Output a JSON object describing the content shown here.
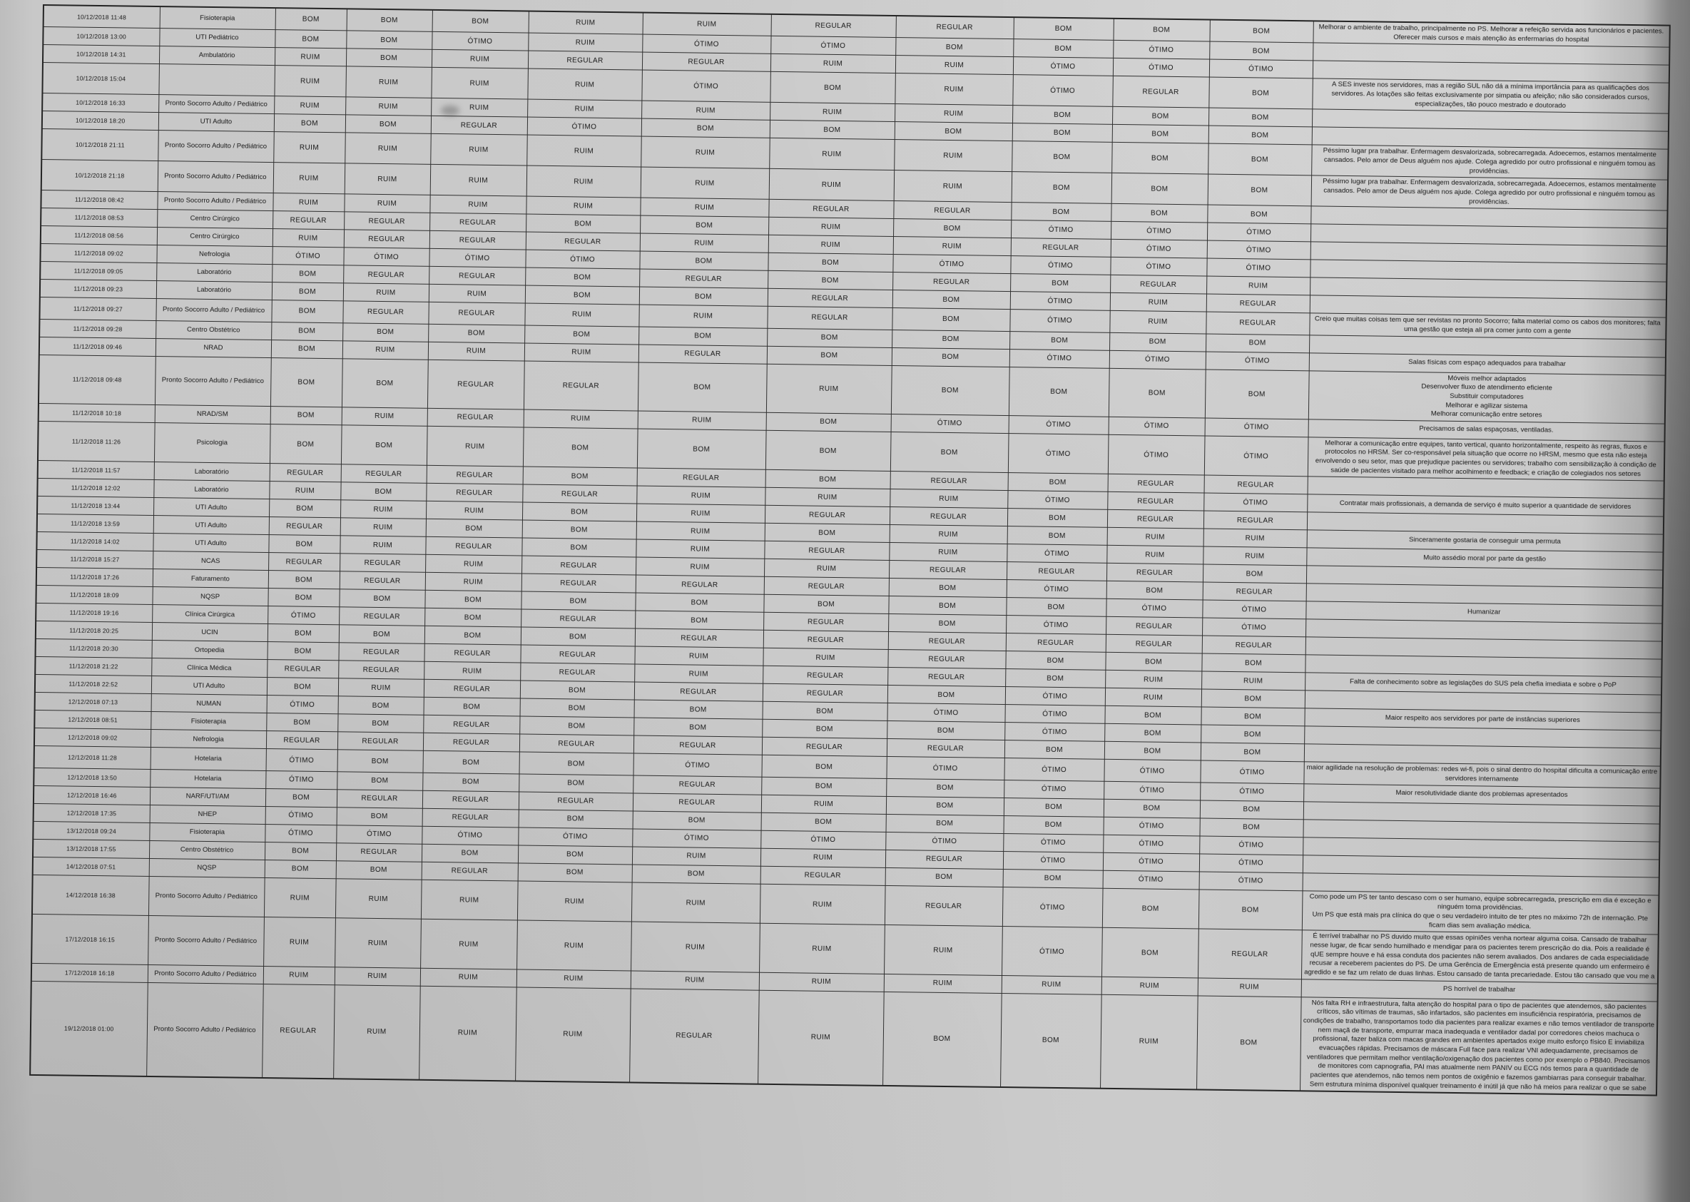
{
  "document": {
    "kind": "scanned-survey-table",
    "rating_values_used": [
      "BOM",
      "RUIM",
      "REGULAR",
      "ÓTIMO"
    ],
    "paper_color": "#cbcbcb",
    "ink_color": "#1a1a1a"
  },
  "table": {
    "rows": [
      {
        "datetime": "10/12/2018 11:48",
        "sector": "Fisioterapia",
        "ratings": [
          "BOM",
          "BOM",
          "BOM",
          "RUIM",
          "RUIM",
          "REGULAR",
          "REGULAR",
          "BOM",
          "BOM",
          "BOM"
        ],
        "comment": "Melhorar o ambiente de trabalho, principalmente no PS. Melhorar a refeição servida aos funcionários e pacientes. Oferecer mais cursos e mais atenção às enfermarias do hospital"
      },
      {
        "datetime": "10/12/2018 13:00",
        "sector": "UTI Pediátrico",
        "ratings": [
          "BOM",
          "BOM",
          "ÓTIMO",
          "RUIM",
          "ÓTIMO",
          "ÓTIMO",
          "BOM",
          "BOM",
          "ÓTIMO",
          "BOM"
        ],
        "comment": ""
      },
      {
        "datetime": "10/12/2018 14:31",
        "sector": "Ambulatório",
        "ratings": [
          "RUIM",
          "BOM",
          "RUIM",
          "REGULAR",
          "REGULAR",
          "RUIM",
          "RUIM",
          "ÓTIMO",
          "ÓTIMO",
          "ÓTIMO"
        ],
        "comment": ""
      },
      {
        "datetime": "10/12/2018 15:04",
        "sector": "",
        "ratings": [
          "RUIM",
          "RUIM",
          "RUIM",
          "RUIM",
          "ÓTIMO",
          "BOM",
          "RUIM",
          "ÓTIMO",
          "REGULAR",
          "BOM"
        ],
        "comment": "A SES investe nos servidores, mas a região SUL não dá a mínima importância para as qualificações dos servidores. As lotações são feitas exclusivamente por simpatia ou afeição; não são considerados cursos, especializações, tão pouco mestrado e doutorado"
      },
      {
        "datetime": "10/12/2018 16:33",
        "sector": "Pronto Socorro Adulto / Pediátrico",
        "ratings": [
          "RUIM",
          "RUIM",
          "RUIM",
          "RUIM",
          "RUIM",
          "RUIM",
          "RUIM",
          "BOM",
          "BOM",
          "BOM"
        ],
        "comment": ""
      },
      {
        "datetime": "10/12/2018 18:20",
        "sector": "UTI Adulto",
        "ratings": [
          "BOM",
          "BOM",
          "REGULAR",
          "ÓTIMO",
          "BOM",
          "BOM",
          "BOM",
          "BOM",
          "BOM",
          "BOM"
        ],
        "comment": ""
      },
      {
        "datetime": "10/12/2018 21:11",
        "sector": "Pronto Socorro Adulto / Pediátrico",
        "ratings": [
          "RUIM",
          "RUIM",
          "RUIM",
          "RUIM",
          "RUIM",
          "RUIM",
          "RUIM",
          "BOM",
          "BOM",
          "BOM"
        ],
        "comment": "Péssimo lugar pra trabalhar. Enfermagem desvalorizada, sobrecarregada. Adoecemos, estamos mentalmente cansados. Pelo amor de Deus alguém nos ajude. Colega agredido por outro profissional e ninguém tomou as providências."
      },
      {
        "datetime": "10/12/2018 21:18",
        "sector": "Pronto Socorro Adulto / Pediátrico",
        "ratings": [
          "RUIM",
          "RUIM",
          "RUIM",
          "RUIM",
          "RUIM",
          "RUIM",
          "RUIM",
          "BOM",
          "BOM",
          "BOM"
        ],
        "comment": "Péssimo lugar pra trabalhar. Enfermagem desvalorizada, sobrecarregada. Adoecemos, estamos mentalmente cansados. Pelo amor de Deus alguém nos ajude. Colega agredido por outro profissional e ninguém tomou as providências."
      },
      {
        "datetime": "11/12/2018 08:42",
        "sector": "Pronto Socorro Adulto / Pediátrico",
        "ratings": [
          "RUIM",
          "RUIM",
          "RUIM",
          "RUIM",
          "RUIM",
          "REGULAR",
          "REGULAR",
          "BOM",
          "BOM",
          "BOM"
        ],
        "comment": ""
      },
      {
        "datetime": "11/12/2018 08:53",
        "sector": "Centro Cirúrgico",
        "ratings": [
          "REGULAR",
          "REGULAR",
          "REGULAR",
          "BOM",
          "BOM",
          "RUIM",
          "BOM",
          "ÓTIMO",
          "ÓTIMO",
          "ÓTIMO"
        ],
        "comment": ""
      },
      {
        "datetime": "11/12/2018 08:56",
        "sector": "Centro Cirúrgico",
        "ratings": [
          "RUIM",
          "REGULAR",
          "REGULAR",
          "REGULAR",
          "RUIM",
          "RUIM",
          "RUIM",
          "REGULAR",
          "ÓTIMO",
          "ÓTIMO"
        ],
        "comment": ""
      },
      {
        "datetime": "11/12/2018 09:02",
        "sector": "Nefrologia",
        "ratings": [
          "ÓTIMO",
          "ÓTIMO",
          "ÓTIMO",
          "ÓTIMO",
          "BOM",
          "BOM",
          "ÓTIMO",
          "ÓTIMO",
          "ÓTIMO",
          "ÓTIMO"
        ],
        "comment": ""
      },
      {
        "datetime": "11/12/2018 09:05",
        "sector": "Laboratório",
        "ratings": [
          "BOM",
          "REGULAR",
          "REGULAR",
          "BOM",
          "REGULAR",
          "BOM",
          "REGULAR",
          "BOM",
          "REGULAR",
          "RUIM"
        ],
        "comment": ""
      },
      {
        "datetime": "11/12/2018 09:23",
        "sector": "Laboratório",
        "ratings": [
          "BOM",
          "RUIM",
          "RUIM",
          "BOM",
          "BOM",
          "REGULAR",
          "BOM",
          "ÓTIMO",
          "RUIM",
          "REGULAR"
        ],
        "comment": ""
      },
      {
        "datetime": "11/12/2018 09:27",
        "sector": "Pronto Socorro Adulto / Pediátrico",
        "ratings": [
          "BOM",
          "REGULAR",
          "REGULAR",
          "RUIM",
          "RUIM",
          "REGULAR",
          "BOM",
          "ÓTIMO",
          "RUIM",
          "REGULAR"
        ],
        "comment": "Creio que muitas coisas tem que ser revistas no pronto Socorro; falta material como os cabos dos monitores; falta uma gestão que esteja ali pra comer junto com a gente"
      },
      {
        "datetime": "11/12/2018 09:28",
        "sector": "Centro Obstétrico",
        "ratings": [
          "BOM",
          "BOM",
          "BOM",
          "BOM",
          "BOM",
          "BOM",
          "BOM",
          "BOM",
          "BOM",
          "BOM"
        ],
        "comment": ""
      },
      {
        "datetime": "11/12/2018 09:46",
        "sector": "NRAD",
        "ratings": [
          "BOM",
          "RUIM",
          "RUIM",
          "RUIM",
          "REGULAR",
          "BOM",
          "BOM",
          "ÓTIMO",
          "ÓTIMO",
          "ÓTIMO"
        ],
        "comment": "Salas físicas com espaço adequados para trabalhar"
      },
      {
        "datetime": "11/12/2018 09:48",
        "sector": "Pronto Socorro Adulto / Pediátrico",
        "ratings": [
          "BOM",
          "BOM",
          "REGULAR",
          "REGULAR",
          "BOM",
          "RUIM",
          "BOM",
          "BOM",
          "BOM",
          "BOM"
        ],
        "comment": "Móveis melhor adaptados\nDesenvolver fluxo de atendimento eficiente\nSubstituir computadores\nMelhorar e agilizar sistema\nMelhorar comunicação entre setores"
      },
      {
        "datetime": "11/12/2018 10:18",
        "sector": "NRAD/SM",
        "ratings": [
          "BOM",
          "RUIM",
          "REGULAR",
          "RUIM",
          "RUIM",
          "BOM",
          "ÓTIMO",
          "ÓTIMO",
          "ÓTIMO",
          "ÓTIMO"
        ],
        "comment": "Precisamos de salas espaçosas, ventiladas."
      },
      {
        "datetime": "11/12/2018 11:26",
        "sector": "Psicologia",
        "ratings": [
          "BOM",
          "BOM",
          "RUIM",
          "BOM",
          "BOM",
          "BOM",
          "BOM",
          "ÓTIMO",
          "ÓTIMO",
          "ÓTIMO"
        ],
        "comment": "Melhorar a comunicação entre equipes, tanto vertical, quanto horizontalmente, respeito às regras, fluxos e protocolos no HRSM. Ser co-responsável pela situação que ocorre no HRSM, mesmo que esta não esteja envolvendo o seu setor, mas que prejudique pacientes ou servidores; trabalho com sensibilização à condição de saúde de pacientes visitado para melhor acolhimento e feedback; e criação de colegiados nos setores"
      },
      {
        "datetime": "11/12/2018 11:57",
        "sector": "Laboratório",
        "ratings": [
          "REGULAR",
          "REGULAR",
          "REGULAR",
          "BOM",
          "REGULAR",
          "BOM",
          "REGULAR",
          "BOM",
          "REGULAR",
          "REGULAR"
        ],
        "comment": ""
      },
      {
        "datetime": "11/12/2018 12:02",
        "sector": "Laboratório",
        "ratings": [
          "RUIM",
          "BOM",
          "REGULAR",
          "REGULAR",
          "RUIM",
          "RUIM",
          "RUIM",
          "ÓTIMO",
          "REGULAR",
          "ÓTIMO"
        ],
        "comment": "Contratar mais profissionais, a demanda de serviço é muito superior a quantidade de servidores"
      },
      {
        "datetime": "11/12/2018 13:44",
        "sector": "UTI Adulto",
        "ratings": [
          "BOM",
          "RUIM",
          "RUIM",
          "BOM",
          "RUIM",
          "REGULAR",
          "REGULAR",
          "BOM",
          "REGULAR",
          "REGULAR"
        ],
        "comment": ""
      },
      {
        "datetime": "11/12/2018 13:59",
        "sector": "UTI Adulto",
        "ratings": [
          "REGULAR",
          "RUIM",
          "BOM",
          "BOM",
          "RUIM",
          "BOM",
          "RUIM",
          "BOM",
          "RUIM",
          "RUIM"
        ],
        "comment": "Sinceramente gostaria de conseguir uma permuta"
      },
      {
        "datetime": "11/12/2018 14:02",
        "sector": "UTI Adulto",
        "ratings": [
          "BOM",
          "RUIM",
          "REGULAR",
          "BOM",
          "RUIM",
          "REGULAR",
          "RUIM",
          "ÓTIMO",
          "RUIM",
          "RUIM"
        ],
        "comment": "Muito assédio moral por parte da gestão"
      },
      {
        "datetime": "11/12/2018 15:27",
        "sector": "NCAS",
        "ratings": [
          "REGULAR",
          "REGULAR",
          "RUIM",
          "REGULAR",
          "RUIM",
          "RUIM",
          "REGULAR",
          "REGULAR",
          "REGULAR",
          "BOM"
        ],
        "comment": ""
      },
      {
        "datetime": "11/12/2018 17:26",
        "sector": "Faturamento",
        "ratings": [
          "BOM",
          "REGULAR",
          "RUIM",
          "REGULAR",
          "REGULAR",
          "REGULAR",
          "BOM",
          "ÓTIMO",
          "BOM",
          "REGULAR"
        ],
        "comment": ""
      },
      {
        "datetime": "11/12/2018 18:09",
        "sector": "NQSP",
        "ratings": [
          "BOM",
          "BOM",
          "BOM",
          "BOM",
          "BOM",
          "BOM",
          "BOM",
          "BOM",
          "ÓTIMO",
          "ÓTIMO"
        ],
        "comment": "Humanizar"
      },
      {
        "datetime": "11/12/2018 19:16",
        "sector": "Clínica Cirúrgica",
        "ratings": [
          "ÓTIMO",
          "REGULAR",
          "BOM",
          "REGULAR",
          "BOM",
          "REGULAR",
          "BOM",
          "ÓTIMO",
          "REGULAR",
          "ÓTIMO"
        ],
        "comment": ""
      },
      {
        "datetime": "11/12/2018 20:25",
        "sector": "UCIN",
        "ratings": [
          "BOM",
          "BOM",
          "BOM",
          "BOM",
          "REGULAR",
          "REGULAR",
          "REGULAR",
          "REGULAR",
          "REGULAR",
          "REGULAR"
        ],
        "comment": ""
      },
      {
        "datetime": "11/12/2018 20:30",
        "sector": "Ortopedia",
        "ratings": [
          "BOM",
          "REGULAR",
          "REGULAR",
          "REGULAR",
          "RUIM",
          "RUIM",
          "REGULAR",
          "BOM",
          "BOM",
          "BOM"
        ],
        "comment": ""
      },
      {
        "datetime": "11/12/2018 21:22",
        "sector": "Clínica Médica",
        "ratings": [
          "REGULAR",
          "REGULAR",
          "RUIM",
          "REGULAR",
          "RUIM",
          "REGULAR",
          "REGULAR",
          "BOM",
          "RUIM",
          "RUIM"
        ],
        "comment": "Falta de conhecimento sobre as legislações do SUS pela chefia imediata e sobre o PoP"
      },
      {
        "datetime": "11/12/2018 22:52",
        "sector": "UTI Adulto",
        "ratings": [
          "BOM",
          "RUIM",
          "REGULAR",
          "BOM",
          "REGULAR",
          "REGULAR",
          "BOM",
          "ÓTIMO",
          "RUIM",
          "BOM"
        ],
        "comment": ""
      },
      {
        "datetime": "12/12/2018 07:13",
        "sector": "NUMAN",
        "ratings": [
          "ÓTIMO",
          "BOM",
          "BOM",
          "BOM",
          "BOM",
          "BOM",
          "ÓTIMO",
          "ÓTIMO",
          "BOM",
          "BOM"
        ],
        "comment": "Maior respeito aos servidores por parte de instâncias superiores"
      },
      {
        "datetime": "12/12/2018 08:51",
        "sector": "Fisioterapia",
        "ratings": [
          "BOM",
          "BOM",
          "REGULAR",
          "BOM",
          "BOM",
          "BOM",
          "BOM",
          "ÓTIMO",
          "BOM",
          "BOM"
        ],
        "comment": ""
      },
      {
        "datetime": "12/12/2018 09:02",
        "sector": "Nefrologia",
        "ratings": [
          "REGULAR",
          "REGULAR",
          "REGULAR",
          "REGULAR",
          "REGULAR",
          "REGULAR",
          "REGULAR",
          "BOM",
          "BOM",
          "BOM"
        ],
        "comment": ""
      },
      {
        "datetime": "12/12/2018 11:28",
        "sector": "Hotelaria",
        "ratings": [
          "ÓTIMO",
          "BOM",
          "BOM",
          "BOM",
          "ÓTIMO",
          "BOM",
          "ÓTIMO",
          "ÓTIMO",
          "ÓTIMO",
          "ÓTIMO"
        ],
        "comment": "maior agilidade na resolução de problemas: redes wi-fi, pois o sinal dentro do hospital dificulta a comunicação entre servidores internamente"
      },
      {
        "datetime": "12/12/2018 13:50",
        "sector": "Hotelaria",
        "ratings": [
          "ÓTIMO",
          "BOM",
          "BOM",
          "BOM",
          "REGULAR",
          "BOM",
          "BOM",
          "ÓTIMO",
          "ÓTIMO",
          "ÓTIMO"
        ],
        "comment": "Maior resolutividade diante dos problemas apresentados"
      },
      {
        "datetime": "12/12/2018 16:46",
        "sector": "NARF/UTI/AM",
        "ratings": [
          "BOM",
          "REGULAR",
          "REGULAR",
          "REGULAR",
          "REGULAR",
          "RUIM",
          "BOM",
          "BOM",
          "BOM",
          "BOM"
        ],
        "comment": ""
      },
      {
        "datetime": "12/12/2018 17:35",
        "sector": "NHEP",
        "ratings": [
          "ÓTIMO",
          "BOM",
          "REGULAR",
          "BOM",
          "BOM",
          "BOM",
          "BOM",
          "BOM",
          "ÓTIMO",
          "BOM"
        ],
        "comment": ""
      },
      {
        "datetime": "13/12/2018 09:24",
        "sector": "Fisioterapia",
        "ratings": [
          "ÓTIMO",
          "ÓTIMO",
          "ÓTIMO",
          "ÓTIMO",
          "ÓTIMO",
          "ÓTIMO",
          "ÓTIMO",
          "ÓTIMO",
          "ÓTIMO",
          "ÓTIMO"
        ],
        "comment": ""
      },
      {
        "datetime": "13/12/2018 17:55",
        "sector": "Centro Obstétrico",
        "ratings": [
          "BOM",
          "REGULAR",
          "BOM",
          "BOM",
          "RUIM",
          "RUIM",
          "REGULAR",
          "ÓTIMO",
          "ÓTIMO",
          "ÓTIMO"
        ],
        "comment": ""
      },
      {
        "datetime": "14/12/2018 07:51",
        "sector": "NQSP",
        "ratings": [
          "BOM",
          "BOM",
          "REGULAR",
          "BOM",
          "BOM",
          "REGULAR",
          "BOM",
          "BOM",
          "ÓTIMO",
          "ÓTIMO"
        ],
        "comment": ""
      },
      {
        "datetime": "14/12/2018 16:38",
        "sector": "Pronto Socorro Adulto / Pediátrico",
        "ratings": [
          "RUIM",
          "RUIM",
          "RUIM",
          "RUIM",
          "RUIM",
          "RUIM",
          "REGULAR",
          "ÓTIMO",
          "BOM",
          "BOM"
        ],
        "comment": "Como pode um PS ter tanto descaso com o ser humano, equipe sobrecarregada, prescrição em dia é exceção e ninguém toma providências.\nUm PS que está mais pra clínica do que o seu verdadeiro intuito de ter ptes no máximo 72h de internação. Pte ficam dias sem avaliação médica."
      },
      {
        "datetime": "17/12/2018 16:15",
        "sector": "Pronto Socorro Adulto / Pediátrico",
        "ratings": [
          "RUIM",
          "RUIM",
          "RUIM",
          "RUIM",
          "RUIM",
          "RUIM",
          "RUIM",
          "ÓTIMO",
          "BOM",
          "REGULAR"
        ],
        "comment": "É terrível trabalhar no PS duvido muito que essas opiniões venha nortear alguma coisa. Cansado de trabalhar nesse lugar, de ficar sendo humilhado e mendigar para os pacientes terem prescrição do dia. Pois a realidade é qUE sempre houve e há essa conduta dos pacientes não serem avaliados. Dos andares de cada especialidade recusar a receberem pacientes do PS. De uma Gerência de Emergência está presente quando um enfermeiro é agredido e se faz um relato de duas linhas. Estou cansado de tanta precariedade. Estou tão cansado que vou me a"
      },
      {
        "datetime": "17/12/2018 16:18",
        "sector": "Pronto Socorro Adulto / Pediátrico",
        "ratings": [
          "RUIM",
          "RUIM",
          "RUIM",
          "RUIM",
          "RUIM",
          "RUIM",
          "RUIM",
          "RUIM",
          "RUIM",
          "RUIM"
        ],
        "comment": "PS horrível de trabalhar"
      },
      {
        "datetime": "19/12/2018 01:00",
        "sector": "Pronto Socorro Adulto / Pediátrico",
        "ratings": [
          "REGULAR",
          "RUIM",
          "RUIM",
          "RUIM",
          "REGULAR",
          "RUIM",
          "BOM",
          "BOM",
          "RUIM",
          "BOM"
        ],
        "comment": "Nós falta RH e infraestrutura, falta atenção do hospital para o tipo de pacientes que atendemos, são pacientes críticos, são vítimas de traumas, são infartados, são pacientes em insuficiência respiratória, precisamos de condições de trabalho, transportamos todo dia pacientes para realizar exames e não temos ventilador de transporte nem maçã de transporte, empurrar maca inadequada e ventilador dadal por corredores cheios machuca o profissional, fazer baliza com macas grandes em ambientes apertados exige muito esforço físico E inviabiliza evacuações rápidas. Precisamos de máscara Full face para realizar VNI adequadamente, precisamos de ventiladores que permitam melhor ventilação/oxigenação dos pacientes como por exemplo o PB840. Precisamos de monitores com capnografia, PAI mas atualmente nem PANIV ou ECG nós temos para a quantidade de pacientes que atendemos, não temos nem pontos de oxigênio e fazemos gambiarras para conseguir trabalhar. Sem estrutura mínima disponível qualquer treinamento é inútil já que não há meios para realizar o que se sabe"
      }
    ]
  }
}
